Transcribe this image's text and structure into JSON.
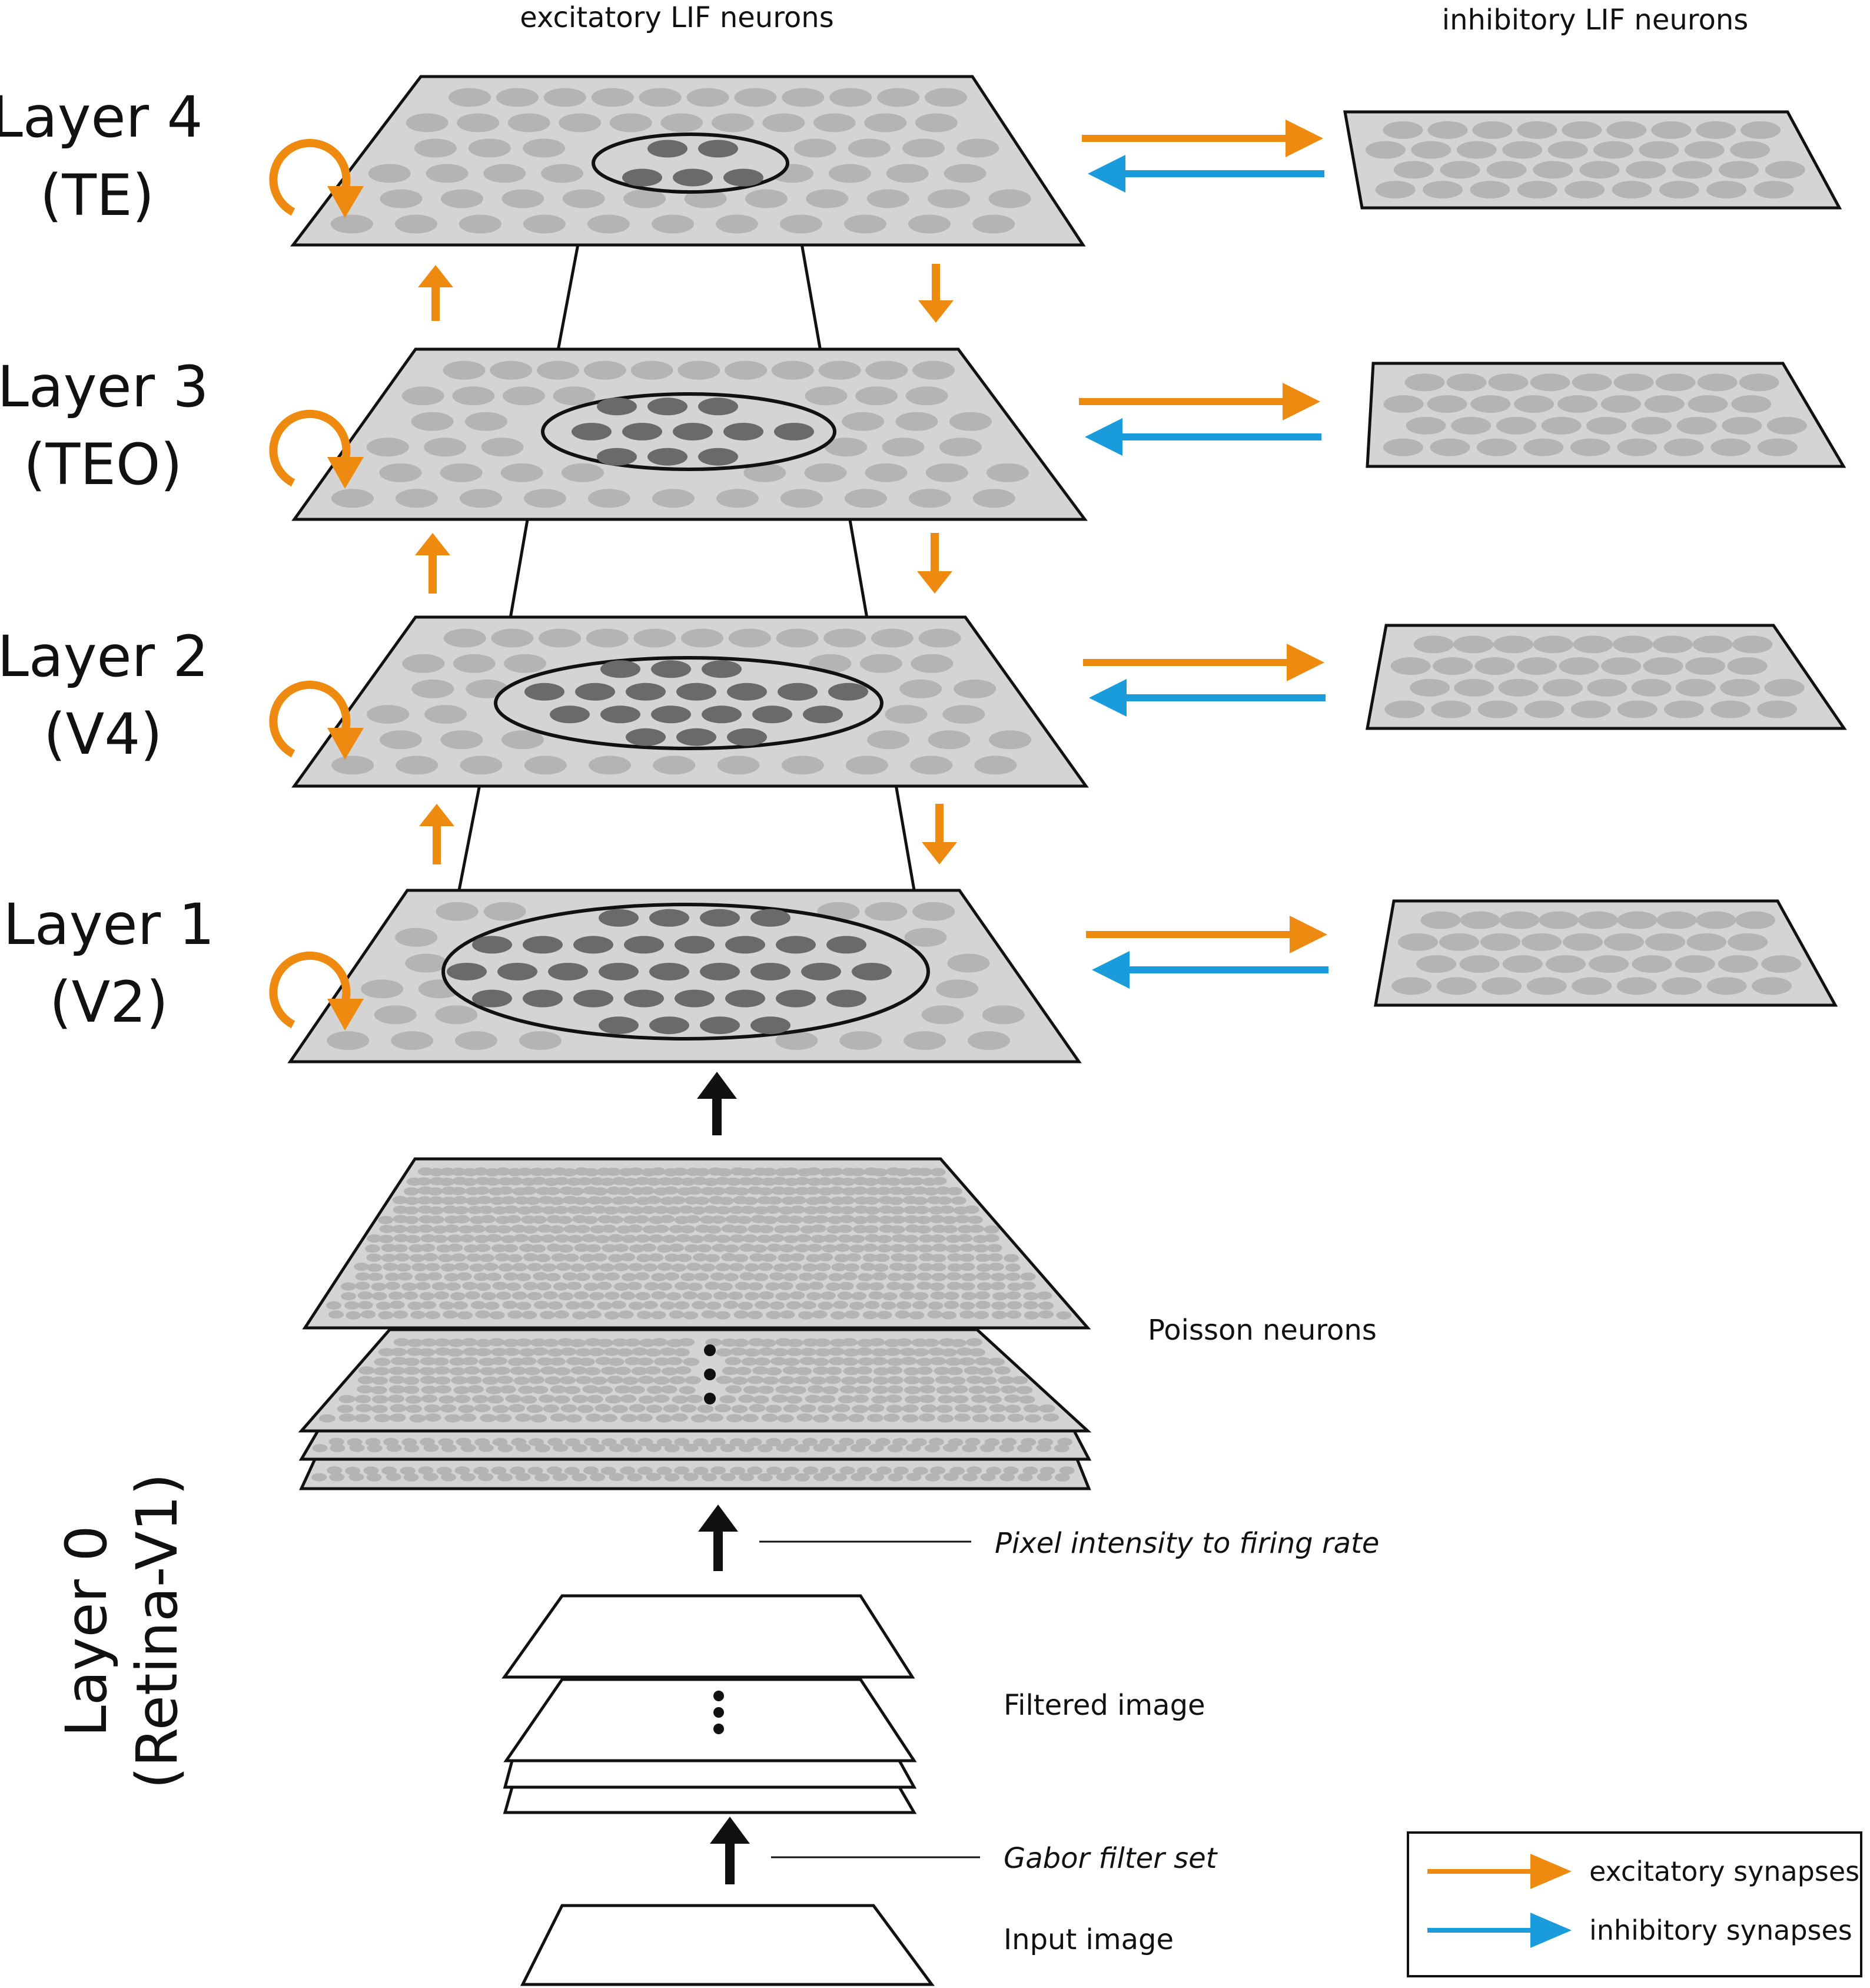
{
  "headers": {
    "excitatory": "excitatory LIF neurons",
    "inhibitory": "inhibitory LIF neurons"
  },
  "layers": [
    {
      "id": "layer4",
      "name": "Layer 4",
      "area": "(TE)"
    },
    {
      "id": "layer3",
      "name": "Layer 3",
      "area": "(TEO)"
    },
    {
      "id": "layer2",
      "name": "Layer 2",
      "area": "(V4)"
    },
    {
      "id": "layer1",
      "name": "Layer 1",
      "area": "(V2)"
    }
  ],
  "layer0": {
    "name": "Layer 0",
    "area": "(Retina-V1)"
  },
  "stage_labels": {
    "poisson": "Poisson neurons",
    "rate_coding": "Pixel intensity to firing rate",
    "filtered": "Filtered image",
    "gabor": "Gabor filter set",
    "input": "Input image"
  },
  "legend": {
    "excitatory": "excitatory synapses",
    "inhibitory": "inhibitory synapses"
  },
  "colors": {
    "excitatory": "#EE8A0F",
    "inhibitory": "#1A9BDB",
    "plane_fill": "#d4d4d4",
    "neuron": "#b4b4b4",
    "neuron_active": "#6a6a6a",
    "outline": "#111111"
  }
}
